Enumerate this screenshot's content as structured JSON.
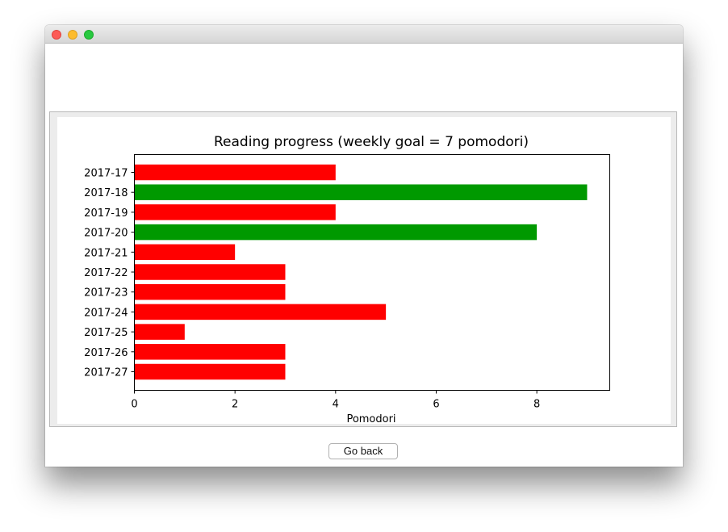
{
  "window": {
    "controls": [
      "close",
      "minimize",
      "maximize"
    ]
  },
  "buttons": {
    "go_back": "Go back"
  },
  "colors": {
    "below_goal": "#ff0000",
    "met_goal": "#009900",
    "axes": "#000000"
  },
  "chart_data": {
    "type": "bar",
    "orientation": "horizontal",
    "title": "Reading progress (weekly goal = 7 pomodori)",
    "xlabel": "Pomodori",
    "ylabel": "",
    "categories": [
      "2017-17",
      "2017-18",
      "2017-19",
      "2017-20",
      "2017-21",
      "2017-22",
      "2017-23",
      "2017-24",
      "2017-25",
      "2017-26",
      "2017-27"
    ],
    "values": [
      4,
      9,
      4,
      8,
      2,
      3,
      3,
      5,
      1,
      3,
      3
    ],
    "goal": 7,
    "xlim": [
      0,
      9.45
    ],
    "xticks": [
      0,
      2,
      4,
      6,
      8
    ],
    "grid": false,
    "legend": "none"
  }
}
